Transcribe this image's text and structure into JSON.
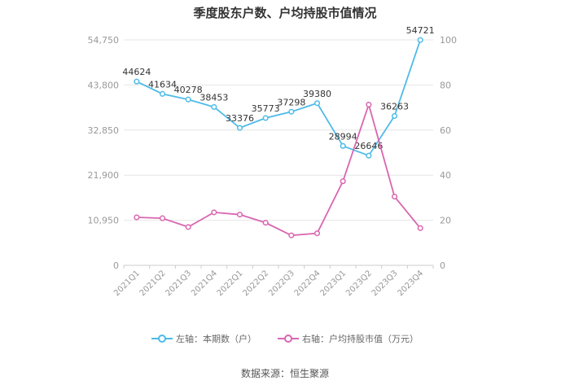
{
  "chart_data": {
    "type": "line",
    "title": "季度股东户数、户均持股市值情况",
    "categories": [
      "2021Q1",
      "2021Q2",
      "2021Q3",
      "2021Q4",
      "2022Q1",
      "2022Q2",
      "2022Q3",
      "2022Q4",
      "2023Q1",
      "2023Q2",
      "2023Q3",
      "2023Q4"
    ],
    "left_axis": {
      "ticks": [
        "0",
        "10,950",
        "21,900",
        "32,850",
        "43,800",
        "54,750"
      ],
      "ylim": [
        0,
        54750
      ]
    },
    "right_axis": {
      "ticks": [
        "0",
        "20",
        "40",
        "60",
        "80",
        "100"
      ],
      "ylim": [
        0,
        100
      ]
    },
    "series": [
      {
        "name": "左轴：本期数（户）",
        "axis": "left",
        "color": "#4dbbe8",
        "values": [
          44624,
          41634,
          40278,
          38453,
          33376,
          35773,
          37298,
          39380,
          28994,
          26646,
          36263,
          54721
        ],
        "labels": [
          "44624",
          "41634",
          "40278",
          "38453",
          "33376",
          "35773",
          "37298",
          "39380",
          "28994",
          "26646",
          "36263",
          "54721"
        ]
      },
      {
        "name": "右轴：户均持股市值（万元）",
        "axis": "right",
        "color": "#d966b0",
        "values": [
          21.3,
          20.9,
          17.0,
          23.5,
          22.5,
          18.9,
          13.3,
          14.2,
          37.3,
          71.3,
          30.5,
          16.5
        ]
      }
    ],
    "grid": true,
    "legend_position": "bottom"
  },
  "source": "数据来源：恒生聚源"
}
